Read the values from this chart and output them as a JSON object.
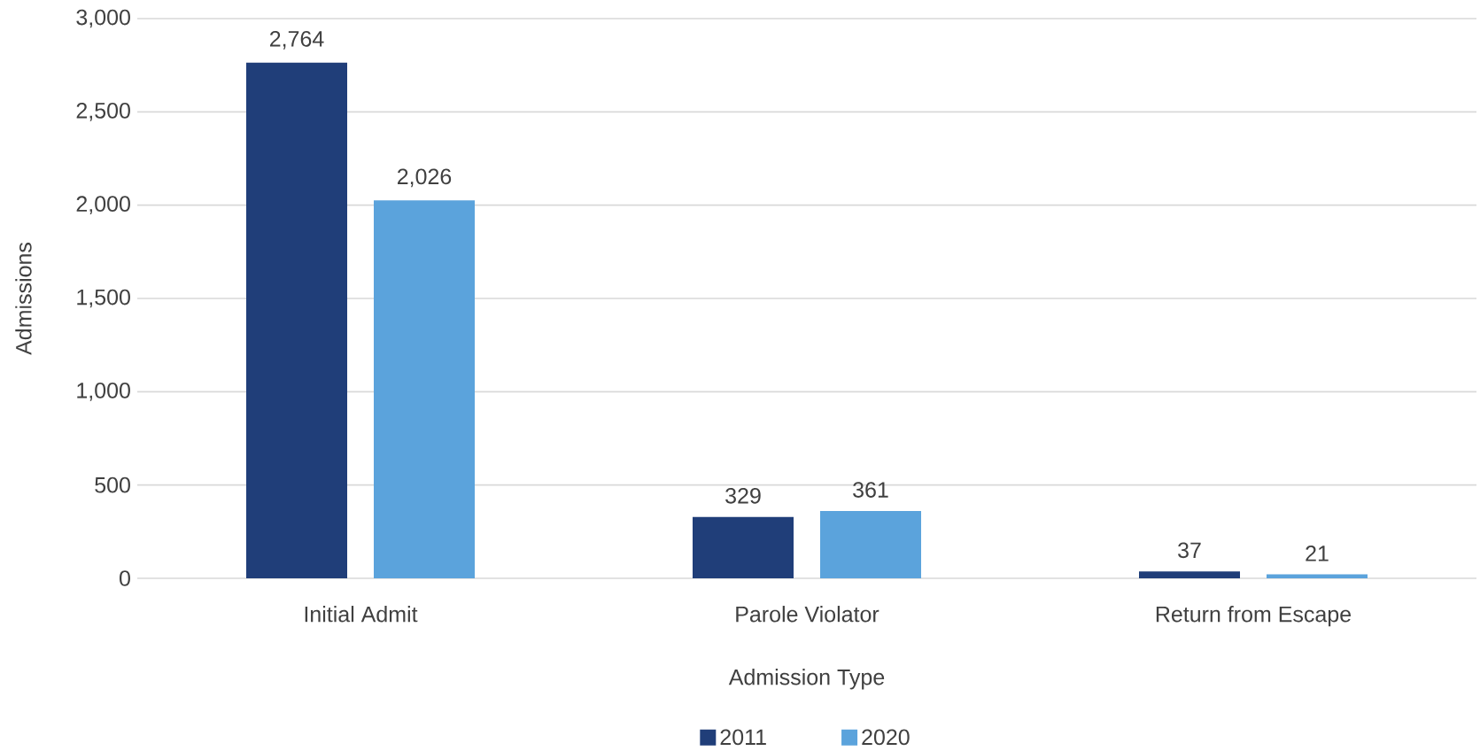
{
  "chart_data": {
    "type": "bar",
    "xlabel": "Admission Type",
    "ylabel": "Admissions",
    "categories": [
      "Initial Admit",
      "Parole Violator",
      "Return from Escape"
    ],
    "series": [
      {
        "name": "2011",
        "color": "#203e79",
        "values": [
          2764,
          329,
          37
        ],
        "value_labels": [
          "2,764",
          "329",
          "37"
        ]
      },
      {
        "name": "2020",
        "color": "#5ba3dc",
        "values": [
          2026,
          361,
          21
        ],
        "value_labels": [
          "2,026",
          "361",
          "21"
        ]
      }
    ],
    "ylim": [
      0,
      3000
    ],
    "yticks": [
      {
        "value": 0,
        "label": "0"
      },
      {
        "value": 500,
        "label": "500"
      },
      {
        "value": 1000,
        "label": "1,000"
      },
      {
        "value": 1500,
        "label": "1,500"
      },
      {
        "value": 2000,
        "label": "2,000"
      },
      {
        "value": 2500,
        "label": "2,500"
      },
      {
        "value": 3000,
        "label": "3,000"
      }
    ],
    "grid": "y",
    "legend": "bottom"
  }
}
